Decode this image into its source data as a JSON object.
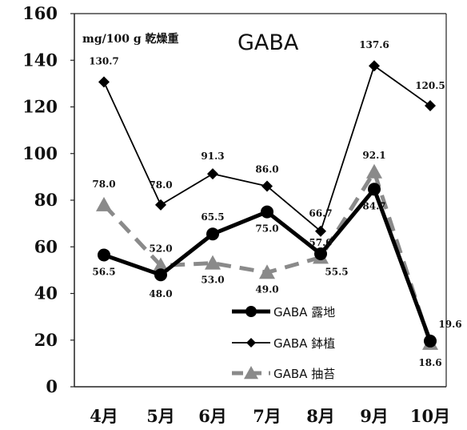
{
  "chart_data": {
    "type": "line",
    "title": "GABA",
    "unit_label": "mg/100 g 乾燥重",
    "categories": [
      "4月",
      "5月",
      "6月",
      "7月",
      "8月",
      "9月",
      "10月"
    ],
    "ylim": [
      0,
      160
    ],
    "yticks": [
      0,
      20,
      40,
      60,
      80,
      100,
      120,
      140,
      160
    ],
    "grid": false,
    "legend_position": "bottom-right",
    "series": [
      {
        "name": "GABA 露地",
        "values": [
          56.5,
          48.0,
          65.5,
          75.0,
          57.0,
          84.7,
          19.6
        ],
        "color": "#000000",
        "style": "thick-solid",
        "marker": "circle",
        "labels": [
          "56.5",
          "48.0",
          "65.5",
          "75.0",
          "57.0",
          "84.7",
          "19.6"
        ]
      },
      {
        "name": "GABA 鉢植",
        "values": [
          130.7,
          78.0,
          91.3,
          86.0,
          66.7,
          137.6,
          120.5
        ],
        "color": "#000000",
        "style": "thin-solid",
        "marker": "diamond",
        "labels": [
          "130.7",
          "78.0",
          "91.3",
          "86.0",
          "66.7",
          "137.6",
          "120.5"
        ]
      },
      {
        "name": "GABA 抽苔",
        "values": [
          78.0,
          52.0,
          53.0,
          49.0,
          55.5,
          92.1,
          18.6
        ],
        "color": "#8a8a8a",
        "style": "dashed",
        "marker": "triangle",
        "labels": [
          "78.0",
          "52.0",
          "53.0",
          "49.0",
          "55.5",
          "92.1",
          "18.6"
        ]
      }
    ]
  }
}
